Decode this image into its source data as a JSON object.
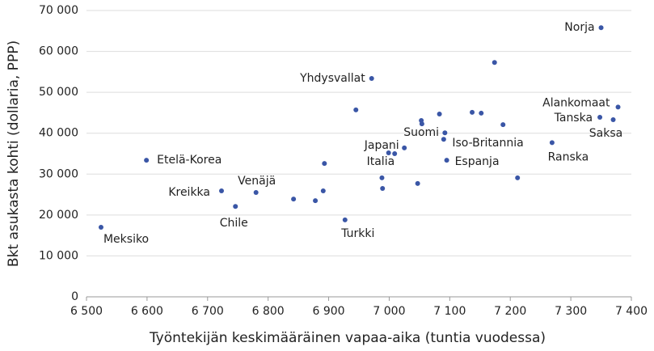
{
  "chart_data": {
    "type": "scatter",
    "x_label": "Työntekijän keskimääräinen vapaa-aika (tuntia vuodessa)",
    "y_label": "Bkt asukasta kohti (dollaria, PPP)",
    "xlim": [
      6500,
      7400
    ],
    "xticks": [
      {
        "value": 6500,
        "label": "6 500"
      },
      {
        "value": 6600,
        "label": "6 600"
      },
      {
        "value": 6700,
        "label": "6 700"
      },
      {
        "value": 6800,
        "label": "6 800"
      },
      {
        "value": 6900,
        "label": "6 900"
      },
      {
        "value": 7000,
        "label": "7 000"
      },
      {
        "value": 7100,
        "label": "7 100"
      },
      {
        "value": 7200,
        "label": "7 200"
      },
      {
        "value": 7300,
        "label": "7 300"
      },
      {
        "value": 7400,
        "label": "7 400"
      }
    ],
    "ylim": [
      0,
      70000
    ],
    "yticks": [
      0,
      {
        "value": 10000,
        "label": "10 000"
      },
      {
        "value": 20000,
        "label": "20 000"
      },
      {
        "value": 30000,
        "label": "30 000"
      },
      {
        "value": 40000,
        "label": "40 000"
      },
      {
        "value": 50000,
        "label": "50 000"
      },
      {
        "value": 60000,
        "label": "60 000"
      },
      {
        "value": 70000,
        "label": "70 000"
      }
    ],
    "grid": true,
    "color": "#3a56a6",
    "x": [
      6524,
      6599,
      6723,
      6746,
      6780,
      6842,
      6878,
      6893,
      6891,
      6927,
      6971,
      6945,
      6988,
      6989,
      6999,
      7009,
      7025,
      7047,
      7053,
      7054,
      7083,
      7090,
      7092,
      7095,
      7137,
      7152,
      7174,
      7188,
      7212,
      7269,
      7350,
      7348,
      7370,
      7378
    ],
    "y": [
      17000,
      33400,
      25900,
      22100,
      25500,
      23900,
      23500,
      32600,
      25900,
      18800,
      53400,
      45700,
      29100,
      26500,
      35200,
      35000,
      36400,
      27700,
      43100,
      42300,
      44700,
      38500,
      40100,
      33400,
      45100,
      44900,
      57300,
      42100,
      29100,
      37700,
      65800,
      43900,
      43300,
      46400
    ],
    "labels": [
      "Meksiko",
      "Etelä-Korea",
      "Kreikka",
      "Chile",
      "Venäjä",
      null,
      null,
      null,
      null,
      "Turkki",
      "Yhdysvallat",
      null,
      null,
      null,
      "Japani",
      "Italia",
      null,
      null,
      "Suomi",
      null,
      null,
      null,
      "Iso-Britannia",
      "Espanja",
      null,
      null,
      null,
      null,
      null,
      "Ranska",
      "Norja",
      "Tanska",
      "Saksa",
      "Alankomaat"
    ]
  }
}
